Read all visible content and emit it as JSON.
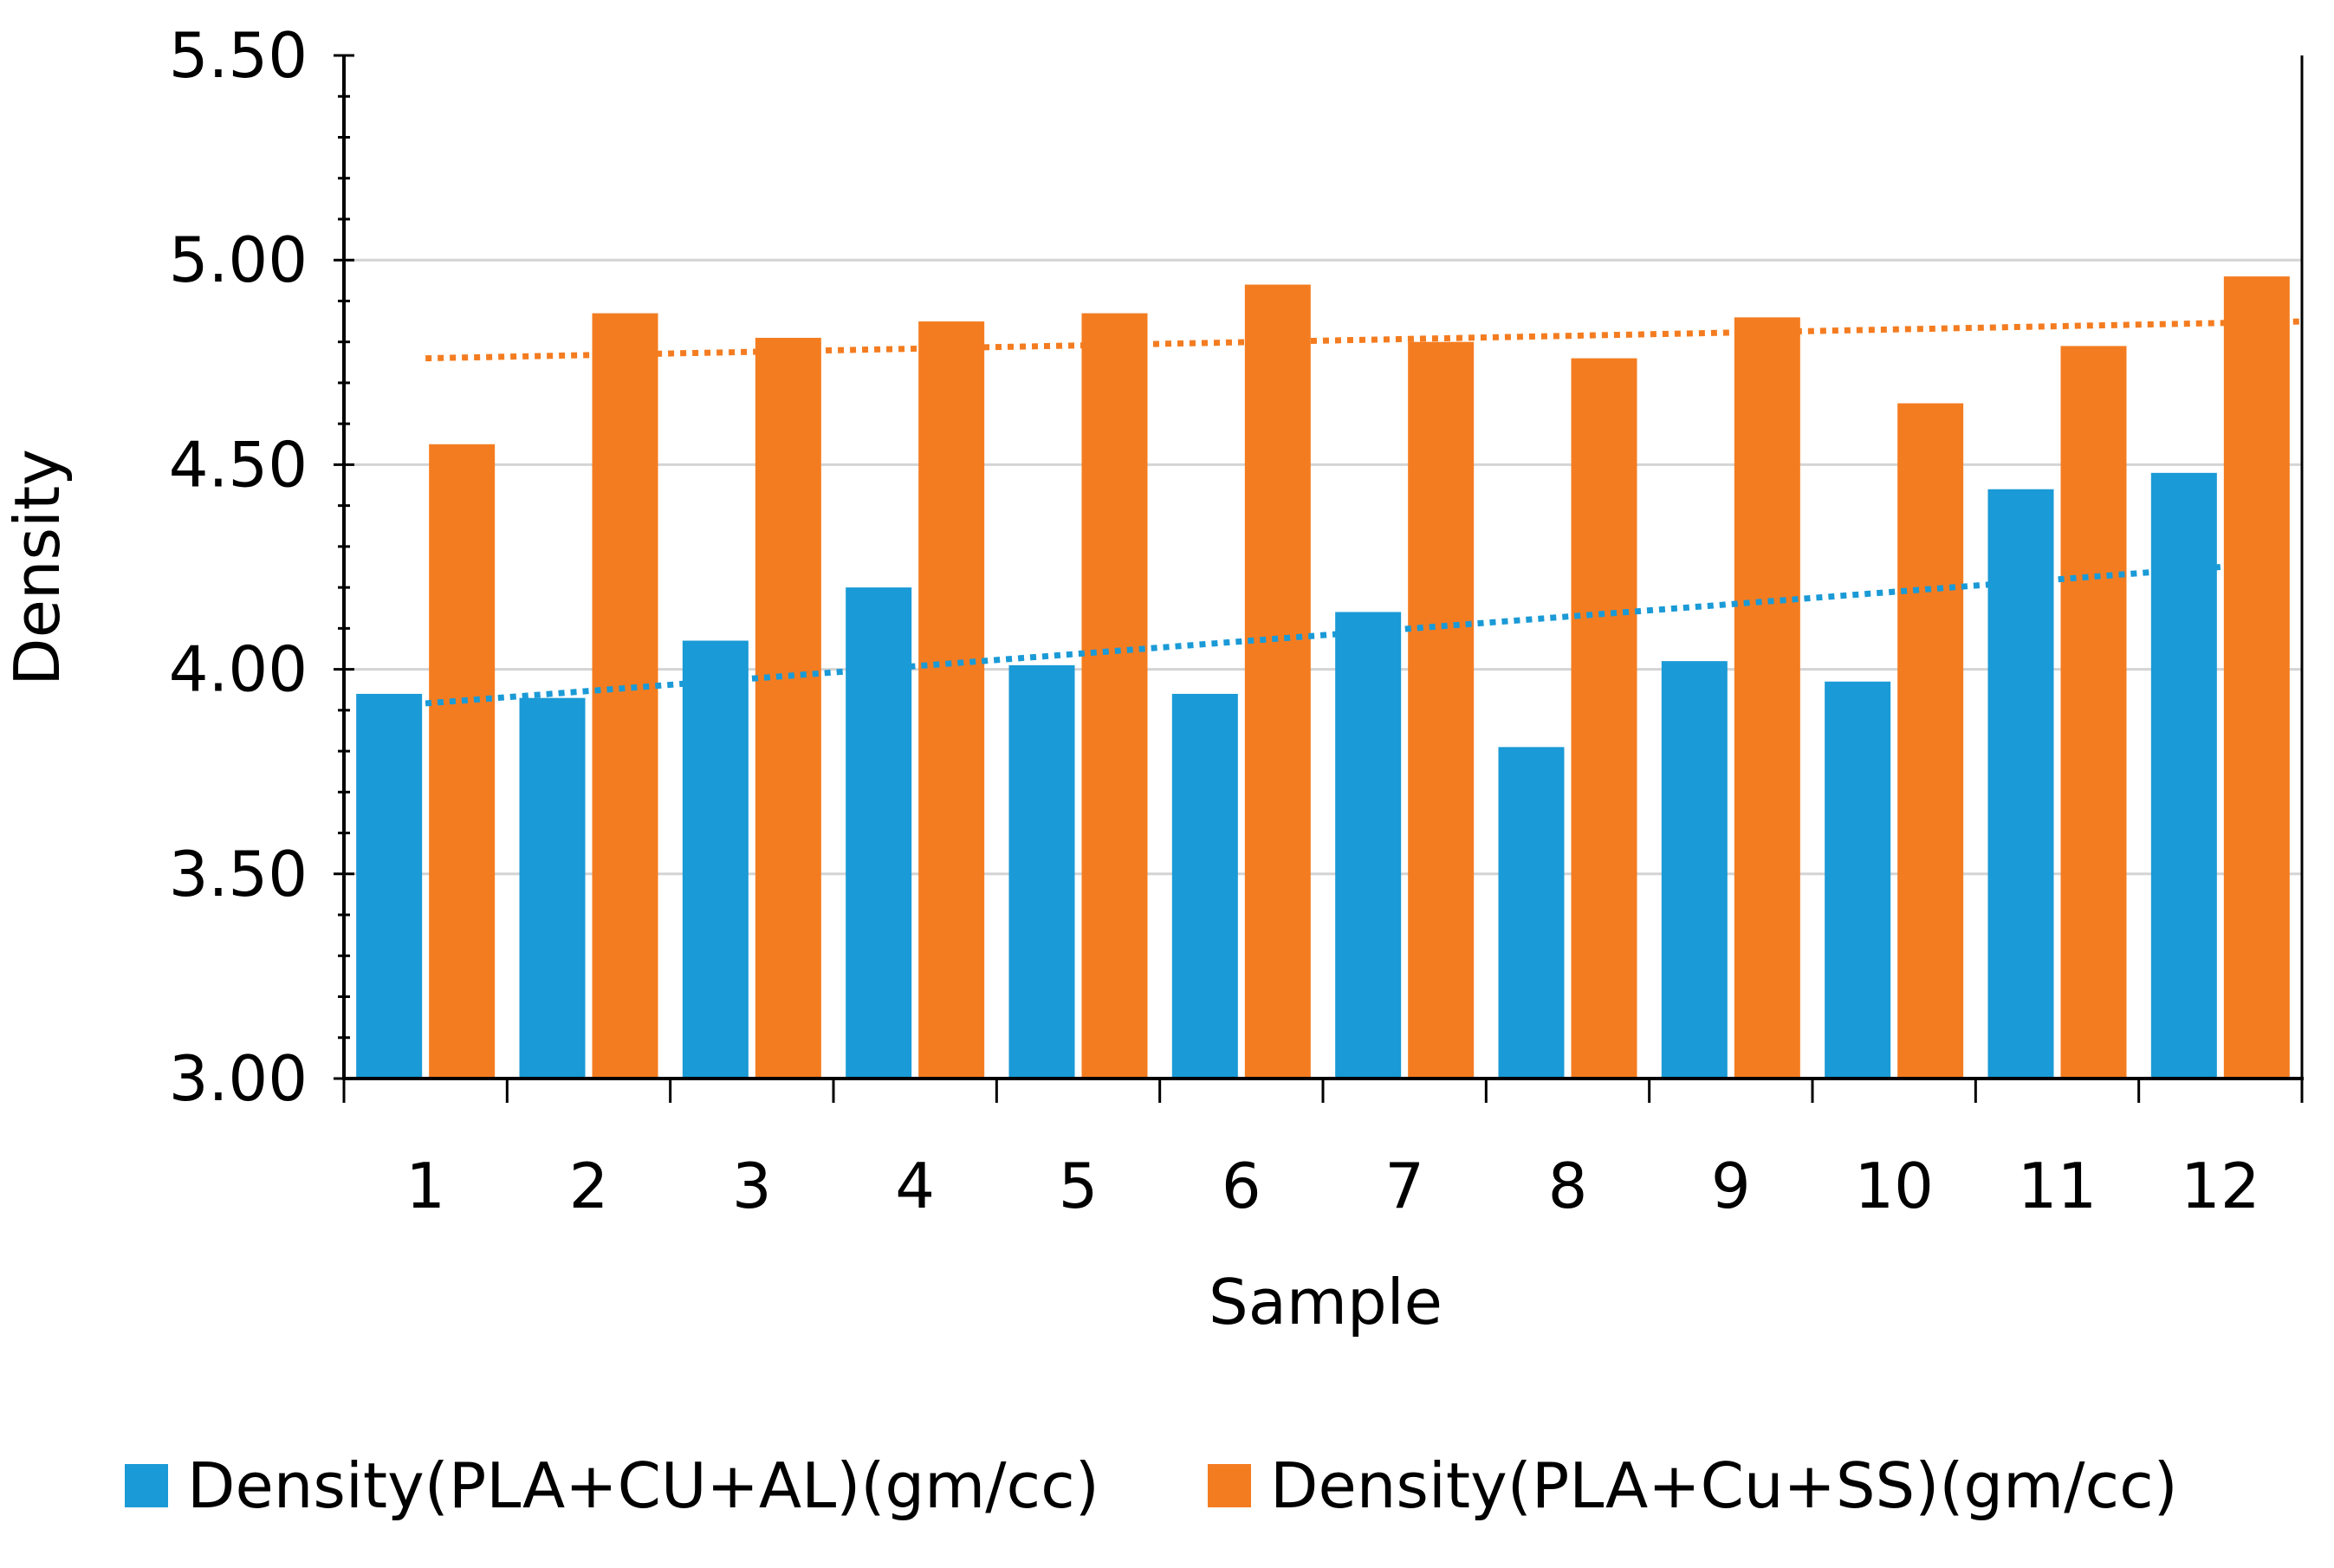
{
  "chart_data": {
    "type": "bar",
    "title": "",
    "xlabel": "Sample",
    "ylabel": "Density",
    "ylim": [
      3.0,
      5.5
    ],
    "y_ticks": [
      "3.00",
      "3.50",
      "4.00",
      "4.50",
      "5.00",
      "5.50"
    ],
    "y_tick_values": [
      3.0,
      3.5,
      4.0,
      4.5,
      5.0,
      5.5
    ],
    "gridlines": [
      3.5,
      4.0,
      4.5,
      5.0
    ],
    "categories": [
      "1",
      "2",
      "3",
      "4",
      "5",
      "6",
      "7",
      "8",
      "9",
      "10",
      "11",
      "12"
    ],
    "series": [
      {
        "name": "Density(PLA+CU+AL)(gm/cc)",
        "color": "#1a9ad6",
        "values": [
          3.94,
          3.93,
          4.07,
          4.2,
          4.01,
          3.94,
          4.14,
          3.81,
          4.02,
          3.97,
          4.44,
          4.48
        ],
        "trendline": {
          "type": "linear",
          "style": "dotted",
          "start": 3.91,
          "end": 4.25
        }
      },
      {
        "name": "Density(PLA+Cu+SS)(gm/cc)",
        "color": "#f47c20",
        "values": [
          4.55,
          4.87,
          4.81,
          4.85,
          4.87,
          4.94,
          4.8,
          4.76,
          4.86,
          4.65,
          4.79,
          4.96
        ],
        "trendline": {
          "type": "linear",
          "style": "dotted",
          "start": 4.76,
          "end": 4.85
        }
      }
    ],
    "legend_position": "bottom",
    "grid": true
  }
}
